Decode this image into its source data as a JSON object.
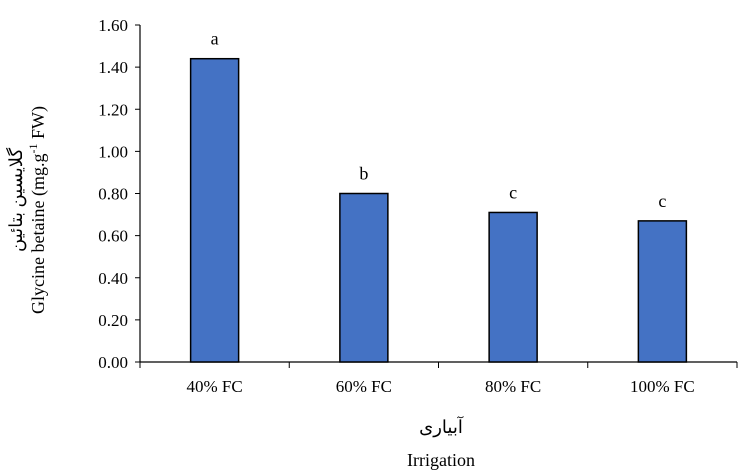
{
  "chart_data": {
    "type": "bar",
    "categories": [
      "40% FC",
      "60% FC",
      "80% FC",
      "100% FC"
    ],
    "values": [
      1.44,
      0.8,
      0.71,
      0.67
    ],
    "data_labels": [
      "a",
      "b",
      "c",
      "c"
    ],
    "title": "",
    "xlabel_fa": "آبیاری",
    "xlabel": "Irrigation",
    "ylabel_fa": "گلایسین بتائین",
    "ylabel": "Glycine betaine (mg.g-1 FW)",
    "ylabel_parts": [
      "Glycine betaine (mg.g",
      "-1",
      " FW)"
    ],
    "ylim": [
      0,
      1.6
    ],
    "yticks": [
      "0.00",
      "0.20",
      "0.40",
      "0.60",
      "0.80",
      "1.00",
      "1.20",
      "1.40",
      "1.60"
    ],
    "grid": false,
    "legend": "none",
    "bar_color": "#4472C4",
    "bar_edge_color": "#000000"
  }
}
